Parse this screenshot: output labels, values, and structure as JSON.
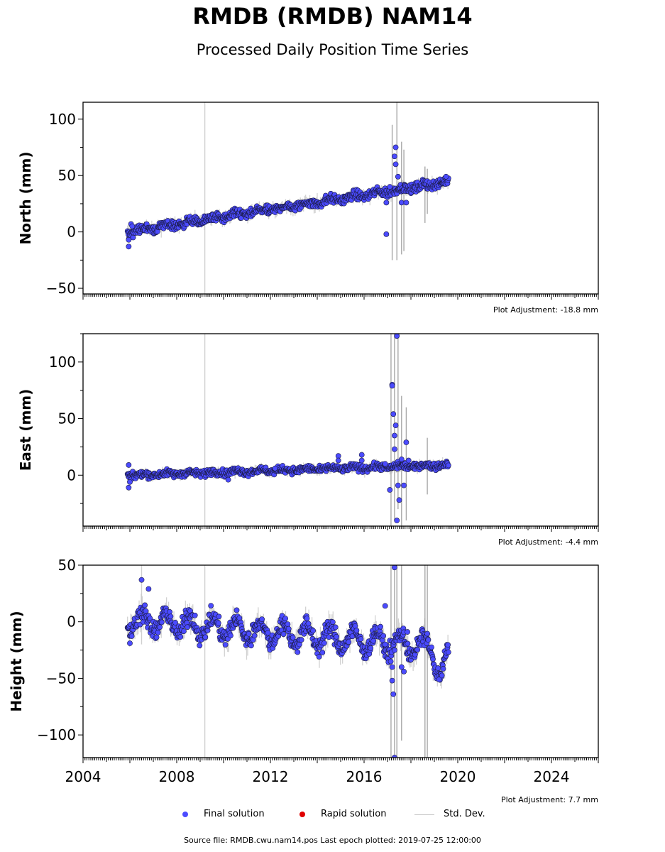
{
  "title": "RMDB (RMDB) NAM14",
  "subtitle": "Processed Daily Position Time Series",
  "footer": "Source file: RMDB.cwu.nam14.pos  Last epoch plotted: 2019-07-25 12:00:00",
  "legend": {
    "final_label": "Final solution",
    "rapid_label": "Rapid solution",
    "std_label": "Std. Dev."
  },
  "colors": {
    "final": "#4b4bff",
    "final_edge": "#1a1a40",
    "rapid": "#e00000",
    "std": "#c8c8c8"
  },
  "chart_data": [
    {
      "type": "scatter",
      "ylabel": "North (mm)",
      "adjustment": "Plot Adjustment: -18.8 mm",
      "xlim": [
        2004,
        2026
      ],
      "ylim": [
        -55,
        115
      ],
      "yticks": [
        -50,
        0,
        50,
        100
      ],
      "ytick_labels": [
        "−50",
        "0",
        "50",
        "100"
      ],
      "trend": [
        [
          2005.9,
          0
        ],
        [
          2019.5,
          44
        ]
      ],
      "annual_amp": 1.5,
      "noise": 2.0,
      "points": [
        [
          2005.95,
          -13
        ],
        [
          2005.95,
          -7
        ],
        [
          2006.05,
          7
        ],
        [
          2006.1,
          5
        ],
        [
          2016.95,
          -2
        ],
        [
          2016.95,
          26
        ],
        [
          2017.1,
          40
        ],
        [
          2017.3,
          67
        ],
        [
          2017.35,
          75
        ],
        [
          2017.35,
          60
        ],
        [
          2017.45,
          49
        ],
        [
          2017.6,
          26
        ],
        [
          2017.8,
          26
        ],
        [
          2019.5,
          49
        ]
      ],
      "std_spikes": [
        [
          2009.2,
          9,
          200
        ],
        [
          2017.2,
          35,
          60
        ],
        [
          2017.4,
          45,
          70
        ],
        [
          2017.6,
          30,
          50
        ],
        [
          2017.7,
          28,
          45
        ],
        [
          2018.6,
          33,
          25
        ],
        [
          2018.7,
          36,
          20
        ]
      ],
      "series": [
        {
          "name": "Final solution",
          "x_range": [
            2005.9,
            2019.6
          ]
        }
      ]
    },
    {
      "type": "scatter",
      "ylabel": "East (mm)",
      "adjustment": "Plot Adjustment: -4.4 mm",
      "xlim": [
        2004,
        2026
      ],
      "ylim": [
        -45,
        125
      ],
      "yticks": [
        0,
        50,
        100
      ],
      "ytick_labels": [
        "0",
        "50",
        "100"
      ],
      "trend": [
        [
          2005.9,
          0
        ],
        [
          2019.5,
          9
        ]
      ],
      "annual_amp": 1.0,
      "noise": 1.5,
      "points": [
        [
          2005.95,
          -11
        ],
        [
          2005.95,
          9
        ],
        [
          2006.0,
          -6
        ],
        [
          2010.2,
          -4
        ],
        [
          2012.2,
          6
        ],
        [
          2014.9,
          17
        ],
        [
          2014.9,
          13
        ],
        [
          2015.9,
          18
        ],
        [
          2015.9,
          13
        ],
        [
          2016.9,
          10
        ],
        [
          2017.1,
          -13
        ],
        [
          2017.2,
          80
        ],
        [
          2017.2,
          79
        ],
        [
          2017.25,
          54
        ],
        [
          2017.3,
          35
        ],
        [
          2017.3,
          23
        ],
        [
          2017.35,
          44
        ],
        [
          2017.4,
          123
        ],
        [
          2017.45,
          -9
        ],
        [
          2017.5,
          -22
        ],
        [
          2017.4,
          -40
        ],
        [
          2017.6,
          14
        ],
        [
          2017.8,
          29
        ],
        [
          2017.7,
          -9
        ],
        [
          2017.9,
          13
        ]
      ],
      "std_spikes": [
        [
          2009.2,
          4,
          200
        ],
        [
          2017.15,
          40,
          90
        ],
        [
          2017.3,
          60,
          100
        ],
        [
          2017.45,
          50,
          80
        ],
        [
          2017.6,
          10,
          60
        ],
        [
          2017.8,
          10,
          50
        ],
        [
          2018.7,
          8,
          25
        ]
      ],
      "series": [
        {
          "name": "Final solution",
          "x_range": [
            2005.9,
            2019.6
          ]
        }
      ]
    },
    {
      "type": "scatter",
      "ylabel": "Height (mm)",
      "adjustment": "Plot Adjustment: 7.7 mm",
      "xaxis": true,
      "xlim": [
        2004,
        2026
      ],
      "ylim": [
        -120,
        50
      ],
      "yticks": [
        -100,
        -50,
        0,
        50
      ],
      "ytick_labels": [
        "−100",
        "−50",
        "0",
        "50"
      ],
      "xticks": [
        2004,
        2008,
        2012,
        2016,
        2020,
        2024
      ],
      "xtick_labels": [
        "2004",
        "2008",
        "2012",
        "2016",
        "2020",
        "2024"
      ],
      "trend": [
        [
          2005.9,
          2
        ],
        [
          2018.8,
          -22
        ]
      ],
      "annual_amp": 9,
      "noise": 4,
      "tail": [
        [
          2018.8,
          -20
        ],
        [
          2019.1,
          -38
        ],
        [
          2019.3,
          -48
        ],
        [
          2019.6,
          -30
        ]
      ],
      "points": [
        [
          2006.0,
          -19
        ],
        [
          2006.5,
          37
        ],
        [
          2006.8,
          29
        ],
        [
          2016.9,
          14
        ],
        [
          2016.9,
          -20
        ],
        [
          2017.2,
          -40
        ],
        [
          2017.2,
          -52
        ],
        [
          2017.25,
          -64
        ],
        [
          2017.3,
          48
        ],
        [
          2017.3,
          -120
        ],
        [
          2017.6,
          -40
        ],
        [
          2017.7,
          -44
        ],
        [
          2017.85,
          -9
        ],
        [
          2019.2,
          -51
        ]
      ],
      "std_spikes": [
        [
          2009.2,
          -10,
          200
        ],
        [
          2006.5,
          20,
          40
        ],
        [
          2017.15,
          -30,
          150
        ],
        [
          2017.3,
          -20,
          150
        ],
        [
          2017.4,
          -40,
          120
        ],
        [
          2017.6,
          -25,
          80
        ],
        [
          2018.6,
          -20,
          120
        ],
        [
          2018.7,
          -30,
          110
        ]
      ],
      "series": [
        {
          "name": "Final solution",
          "x_range": [
            2005.9,
            2019.6
          ]
        }
      ]
    }
  ]
}
